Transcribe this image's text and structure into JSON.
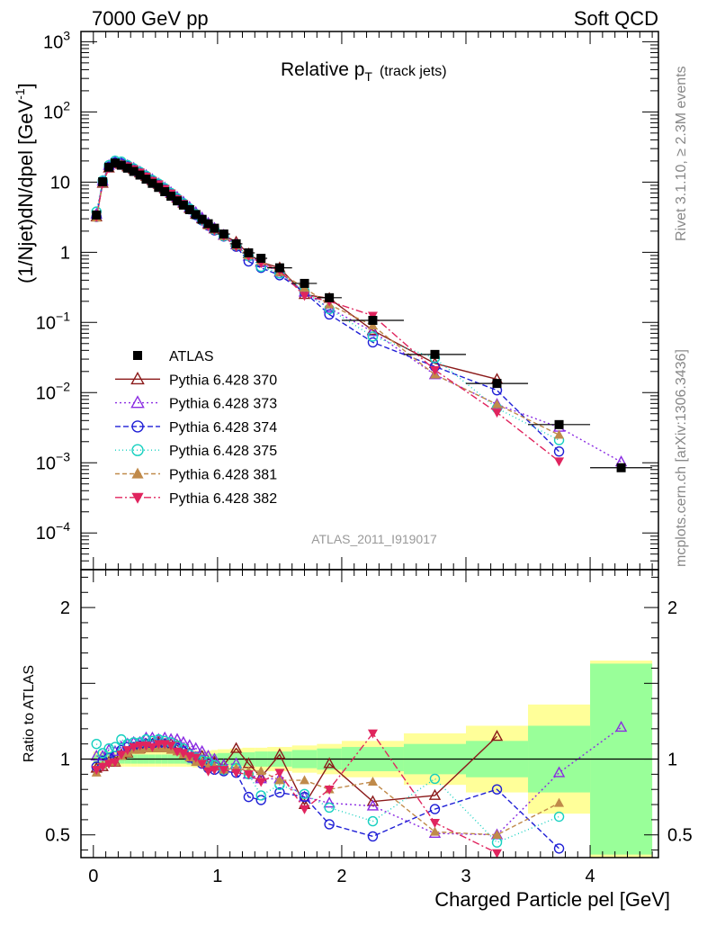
{
  "header": {
    "left": "7000 GeV pp",
    "right": "Soft QCD",
    "side_top": "Rivet 3.1.10, ≥ 2.3M events",
    "side_bottom": "mcplots.cern.ch [arXiv:1306.3436]"
  },
  "chart_data": {
    "type": "line",
    "title": "Relative p_T (track jets)",
    "title_main": "Relative p",
    "title_sub": "T",
    "title_note": "(track jets)",
    "analysis_id": "ATLAS_2011_I919017",
    "xlabel": "Charged Particle p_T^rel [GeV]",
    "xlabel_main": "Charged Particle p",
    "xlabel_tail": "el [GeV]",
    "ylabel": "(1/Njet)dN/dp_T^rel [GeV^-1]",
    "ylabel_main": "(1/Njet)dN/dp",
    "ylabel_tail": "el [GeV",
    "ylabel_sup": "-1",
    "ylabel_close": "]",
    "ratio_ylabel": "Ratio to ATLAS",
    "xlim": [
      -0.1,
      4.55
    ],
    "ylim": [
      3e-05,
      1400
    ],
    "yscale": "log",
    "ratio_ylim": [
      0.35,
      2.25
    ],
    "x_ticks": [
      "0",
      "1",
      "2",
      "3",
      "4"
    ],
    "y_ticks": [
      {
        "base": "10",
        "exp": "3"
      },
      {
        "base": "10",
        "exp": "2"
      },
      {
        "base": "10",
        "exp": ""
      },
      {
        "base": "1",
        "exp": ""
      },
      {
        "base": "10",
        "exp": "−1"
      },
      {
        "base": "10",
        "exp": "−2"
      },
      {
        "base": "10",
        "exp": "−3"
      },
      {
        "base": "10",
        "exp": "−4"
      }
    ],
    "ratio_ticks": [
      "2",
      "1",
      "0.5"
    ],
    "legend_position": "center-left",
    "bins": [
      [
        0.0,
        0.05
      ],
      [
        0.05,
        0.1
      ],
      [
        0.1,
        0.15
      ],
      [
        0.15,
        0.2
      ],
      [
        0.2,
        0.25
      ],
      [
        0.25,
        0.3
      ],
      [
        0.3,
        0.35
      ],
      [
        0.35,
        0.4
      ],
      [
        0.4,
        0.45
      ],
      [
        0.45,
        0.5
      ],
      [
        0.5,
        0.55
      ],
      [
        0.55,
        0.6
      ],
      [
        0.6,
        0.65
      ],
      [
        0.65,
        0.7
      ],
      [
        0.7,
        0.75
      ],
      [
        0.75,
        0.8
      ],
      [
        0.8,
        0.85
      ],
      [
        0.85,
        0.9
      ],
      [
        0.9,
        0.95
      ],
      [
        0.95,
        1.0
      ],
      [
        1.0,
        1.1
      ],
      [
        1.1,
        1.2
      ],
      [
        1.2,
        1.3
      ],
      [
        1.3,
        1.4
      ],
      [
        1.4,
        1.6
      ],
      [
        1.6,
        1.8
      ],
      [
        1.8,
        2.0
      ],
      [
        2.0,
        2.5
      ],
      [
        2.5,
        3.0
      ],
      [
        3.0,
        3.5
      ],
      [
        3.5,
        4.0
      ],
      [
        4.0,
        4.5
      ]
    ],
    "x": [
      0.025,
      0.075,
      0.125,
      0.175,
      0.225,
      0.275,
      0.325,
      0.375,
      0.425,
      0.475,
      0.525,
      0.575,
      0.625,
      0.675,
      0.725,
      0.775,
      0.825,
      0.875,
      0.925,
      0.975,
      1.05,
      1.15,
      1.25,
      1.35,
      1.5,
      1.7,
      1.9,
      2.25,
      2.75,
      3.25,
      3.75,
      4.25
    ],
    "data": {
      "name": "ATLAS",
      "color": "#000000",
      "values": [
        3.4,
        10.1,
        16.3,
        18.7,
        17.4,
        15.8,
        14.2,
        12.6,
        11.0,
        9.6,
        8.4,
        7.3,
        6.3,
        5.4,
        4.7,
        4.05,
        3.45,
        2.95,
        2.55,
        2.2,
        1.82,
        1.32,
        0.98,
        0.82,
        0.6,
        0.36,
        0.225,
        0.107,
        0.035,
        0.0135,
        0.0035,
        0.00085
      ]
    },
    "series": [
      {
        "name": "Pythia 6.428 370",
        "color": "#8b1a1a",
        "marker": "triangle-open",
        "dash": "",
        "values": [
          3.2,
          9.6,
          15.9,
          18.3,
          17.9,
          16.5,
          15.2,
          13.5,
          12.1,
          10.5,
          9.3,
          8.0,
          6.9,
          5.9,
          5.0,
          4.2,
          3.5,
          3.0,
          2.5,
          2.15,
          1.75,
          1.4,
          0.95,
          0.72,
          0.6,
          0.25,
          0.22,
          0.077,
          0.026,
          0.0155,
          null,
          null
        ],
        "ratio": [
          0.94,
          0.95,
          0.98,
          0.98,
          1.03,
          1.04,
          1.07,
          1.07,
          1.1,
          1.1,
          1.11,
          1.1,
          1.1,
          1.09,
          1.06,
          1.04,
          1.01,
          1.02,
          0.98,
          0.98,
          0.96,
          1.07,
          0.97,
          0.88,
          1.03,
          0.7,
          0.97,
          0.72,
          0.76,
          1.15,
          null,
          null
        ]
      },
      {
        "name": "Pythia 6.428 373",
        "color": "#8a2be2",
        "marker": "triangle-open",
        "dash": "2 3",
        "values": [
          3.5,
          10.3,
          17.2,
          19.6,
          18.8,
          17.3,
          15.8,
          14.0,
          12.5,
          10.9,
          9.5,
          8.3,
          7.1,
          6.1,
          5.2,
          4.4,
          3.7,
          3.1,
          2.6,
          2.2,
          1.75,
          1.28,
          0.88,
          0.71,
          0.52,
          0.27,
          0.16,
          0.074,
          0.018,
          0.0068,
          0.0032,
          0.00103
        ],
        "ratio": [
          1.02,
          1.02,
          1.06,
          1.05,
          1.08,
          1.1,
          1.11,
          1.11,
          1.14,
          1.14,
          1.13,
          1.14,
          1.13,
          1.13,
          1.11,
          1.09,
          1.07,
          1.05,
          1.02,
          1.0,
          0.96,
          0.97,
          0.9,
          0.87,
          0.87,
          0.75,
          0.71,
          0.69,
          0.51,
          0.5,
          0.91,
          1.21
        ]
      },
      {
        "name": "Pythia 6.428 374",
        "color": "#1f1fd6",
        "marker": "circle-open",
        "dash": "6 3",
        "values": [
          3.2,
          10.0,
          16.4,
          19.0,
          18.5,
          17.0,
          15.4,
          13.7,
          12.1,
          10.6,
          9.2,
          8.0,
          6.8,
          5.8,
          4.9,
          4.1,
          3.4,
          2.85,
          2.4,
          2.05,
          1.68,
          1.2,
          0.74,
          0.6,
          0.47,
          0.27,
          0.13,
          0.052,
          0.0235,
          0.0108,
          0.00145,
          null
        ],
        "ratio": [
          0.95,
          0.99,
          1.01,
          1.02,
          1.06,
          1.08,
          1.08,
          1.09,
          1.1,
          1.1,
          1.1,
          1.1,
          1.08,
          1.07,
          1.05,
          1.01,
          0.99,
          0.97,
          0.94,
          0.93,
          0.92,
          0.91,
          0.75,
          0.73,
          0.78,
          0.75,
          0.57,
          0.49,
          0.67,
          0.8,
          0.41,
          null
        ]
      },
      {
        "name": "Pythia 6.428 375",
        "color": "#16d0c0",
        "marker": "circle-open",
        "dash": "1 3",
        "values": [
          3.8,
          10.5,
          17.4,
          20.2,
          19.6,
          17.5,
          15.7,
          14.0,
          12.3,
          10.7,
          9.5,
          8.2,
          7.0,
          5.9,
          5.0,
          4.2,
          3.5,
          2.9,
          2.5,
          2.1,
          1.7,
          1.25,
          0.88,
          0.62,
          0.5,
          0.28,
          0.155,
          0.063,
          0.031,
          0.006,
          0.0021,
          null
        ],
        "ratio": [
          1.1,
          1.04,
          1.07,
          1.08,
          1.13,
          1.1,
          1.11,
          1.11,
          1.13,
          1.12,
          1.13,
          1.12,
          1.11,
          1.09,
          1.07,
          1.03,
          1.01,
          0.99,
          0.98,
          0.96,
          0.93,
          0.94,
          0.9,
          0.76,
          0.83,
          0.77,
          0.68,
          0.59,
          0.87,
          0.45,
          0.62,
          null
        ]
      },
      {
        "name": "Pythia 6.428 381",
        "color": "#c08a4a",
        "marker": "triangle-filled",
        "dash": "5 3",
        "values": [
          3.1,
          9.7,
          16.0,
          18.4,
          17.8,
          16.5,
          15.0,
          13.4,
          11.8,
          10.3,
          9.0,
          7.8,
          6.7,
          5.7,
          4.8,
          4.1,
          3.4,
          2.9,
          2.4,
          2.1,
          1.7,
          1.24,
          0.9,
          0.75,
          0.52,
          0.31,
          0.18,
          0.09,
          0.018,
          0.0068,
          0.0025,
          null
        ],
        "ratio": [
          0.91,
          0.96,
          0.98,
          0.98,
          1.02,
          1.04,
          1.06,
          1.06,
          1.07,
          1.07,
          1.07,
          1.07,
          1.06,
          1.05,
          1.03,
          1.01,
          0.98,
          0.98,
          0.95,
          0.95,
          0.93,
          0.94,
          0.92,
          0.92,
          0.86,
          0.86,
          0.8,
          0.85,
          0.52,
          0.5,
          0.71,
          null
        ]
      },
      {
        "name": "Pythia 6.428 382",
        "color": "#e0245e",
        "marker": "triangle-down-filled",
        "dash": "8 3 2 3",
        "values": [
          3.2,
          9.6,
          15.8,
          18.3,
          17.9,
          16.8,
          15.3,
          13.7,
          12.0,
          10.4,
          9.3,
          8.0,
          6.9,
          5.7,
          4.9,
          4.1,
          3.5,
          2.85,
          2.35,
          2.05,
          1.7,
          1.2,
          0.88,
          0.7,
          0.55,
          0.24,
          0.2,
          0.125,
          0.021,
          0.0052,
          0.00105,
          null
        ],
        "ratio": [
          0.93,
          0.95,
          0.97,
          0.98,
          1.03,
          1.06,
          1.08,
          1.09,
          1.09,
          1.08,
          1.1,
          1.1,
          1.09,
          1.05,
          1.04,
          1.02,
          1.01,
          0.97,
          0.92,
          0.93,
          0.93,
          0.91,
          0.9,
          0.85,
          0.91,
          0.67,
          0.8,
          1.17,
          0.58,
          0.38,
          null,
          null
        ]
      }
    ],
    "ratio_band_inner": [
      0.03,
      0.03,
      0.03,
      0.03,
      0.03,
      0.03,
      0.03,
      0.03,
      0.03,
      0.03,
      0.03,
      0.03,
      0.03,
      0.03,
      0.03,
      0.035,
      0.035,
      0.035,
      0.035,
      0.035,
      0.04,
      0.045,
      0.045,
      0.05,
      0.05,
      0.06,
      0.07,
      0.08,
      0.1,
      0.12,
      0.22,
      0.63
    ],
    "ratio_band_outer": [
      0.05,
      0.05,
      0.05,
      0.05,
      0.05,
      0.05,
      0.05,
      0.05,
      0.05,
      0.05,
      0.05,
      0.05,
      0.05,
      0.05,
      0.05,
      0.05,
      0.055,
      0.055,
      0.055,
      0.06,
      0.065,
      0.07,
      0.075,
      0.075,
      0.08,
      0.09,
      0.1,
      0.12,
      0.17,
      0.22,
      0.36,
      0.65
    ]
  }
}
